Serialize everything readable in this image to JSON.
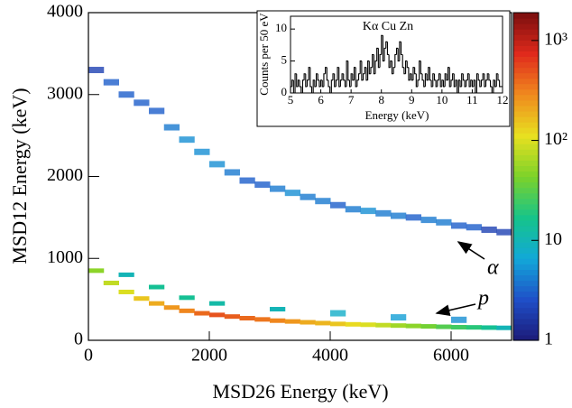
{
  "chart_data": [
    {
      "type": "hist2d",
      "x_label": "MSD26 Energy (keV)",
      "y_label": "MSD12 Energy (keV)",
      "xlim": [
        0,
        7000
      ],
      "xticks": [
        0,
        2000,
        4000,
        6000
      ],
      "ylim": [
        0,
        4000
      ],
      "yticks": [
        0,
        1000,
        2000,
        3000,
        4000
      ],
      "zlim": [
        1,
        1900
      ],
      "zscale": "log",
      "zticks": [
        1,
        10,
        {
          "value": 100,
          "label": "10²"
        },
        {
          "value": 1000,
          "label": "10³"
        }
      ],
      "colormap": [
        "#1c1a78",
        "#1f4fc8",
        "#12a8d8",
        "#16c48a",
        "#7cd22a",
        "#e8e020",
        "#f08a1e",
        "#e02a1c",
        "#7a0e0e"
      ],
      "x": [
        0,
        250,
        500,
        750,
        1000,
        1250,
        1500,
        1750,
        2000,
        2250,
        2500,
        2750,
        3000,
        3250,
        3500,
        3750,
        4000,
        4250,
        4500,
        4750,
        5000,
        5250,
        5500,
        5750,
        6000,
        6250,
        6500,
        6750,
        500,
        1000,
        1500,
        2000,
        3000,
        4000,
        5000,
        6000,
        0,
        250,
        500,
        750,
        1000,
        1250,
        1500,
        1750,
        2000,
        2250,
        2500,
        2750,
        3000,
        3250,
        3500,
        3750,
        4000,
        4250,
        4500,
        4750,
        5000,
        5250,
        5500,
        5750,
        6000,
        6250,
        6500,
        6750
      ],
      "y": [
        850,
        700,
        590,
        510,
        450,
        400,
        360,
        330,
        310,
        290,
        270,
        255,
        240,
        230,
        220,
        210,
        200,
        195,
        190,
        185,
        180,
        175,
        170,
        165,
        160,
        158,
        155,
        152,
        800,
        650,
        520,
        450,
        380,
        330,
        280,
        250,
        3300,
        3150,
        3000,
        2900,
        2800,
        2600,
        2450,
        2300,
        2150,
        2050,
        1950,
        1900,
        1850,
        1800,
        1750,
        1700,
        1650,
        1600,
        1580,
        1550,
        1520,
        1500,
        1470,
        1440,
        1400,
        1380,
        1350,
        1320
      ],
      "values": [
        50,
        80,
        100,
        150,
        200,
        250,
        300,
        400,
        500,
        450,
        400,
        350,
        300,
        250,
        200,
        180,
        150,
        120,
        100,
        80,
        60,
        50,
        40,
        30,
        25,
        20,
        15,
        10,
        10,
        15,
        15,
        12,
        10,
        8,
        6,
        5,
        2,
        3,
        3,
        3,
        3,
        4,
        5,
        5,
        5,
        4,
        3,
        3,
        4,
        5,
        4,
        4,
        3,
        4,
        5,
        4,
        4,
        3,
        4,
        4,
        3,
        3,
        2,
        2
      ],
      "annotations": [
        {
          "text": "α"
        },
        {
          "text": "p"
        }
      ]
    },
    {
      "type": "histogram",
      "title": "Kα Cu Zn",
      "x_label": "Energy (keV)",
      "y_label": "Counts per 50 eV",
      "xlim": [
        5,
        12
      ],
      "xticks": [
        5,
        6,
        7,
        8,
        9,
        10,
        11,
        12
      ],
      "ylim": [
        0,
        12
      ],
      "yticks": [
        0,
        5,
        10
      ],
      "color": "#000000",
      "bins": [
        5,
        5.05,
        5.1,
        5.15,
        5.2,
        5.25,
        5.3,
        5.35,
        5.4,
        5.45,
        5.5,
        5.55,
        5.6,
        5.65,
        5.7,
        5.75,
        5.8,
        5.85,
        5.9,
        5.95,
        6,
        6.05,
        6.1,
        6.15,
        6.2,
        6.25,
        6.3,
        6.35,
        6.4,
        6.45,
        6.5,
        6.55,
        6.6,
        6.65,
        6.7,
        6.75,
        6.8,
        6.85,
        6.9,
        6.95,
        7,
        7.05,
        7.1,
        7.15,
        7.2,
        7.25,
        7.3,
        7.35,
        7.4,
        7.45,
        7.5,
        7.55,
        7.6,
        7.65,
        7.7,
        7.75,
        7.8,
        7.85,
        7.9,
        7.95,
        8,
        8.05,
        8.1,
        8.15,
        8.2,
        8.25,
        8.3,
        8.35,
        8.4,
        8.45,
        8.5,
        8.55,
        8.6,
        8.65,
        8.7,
        8.75,
        8.8,
        8.85,
        8.9,
        8.95,
        9,
        9.05,
        9.1,
        9.15,
        9.2,
        9.25,
        9.3,
        9.35,
        9.4,
        9.45,
        9.5,
        9.55,
        9.6,
        9.65,
        9.7,
        9.75,
        9.8,
        9.85,
        9.9,
        9.95,
        10,
        10.05,
        10.1,
        10.15,
        10.2,
        10.25,
        10.3,
        10.35,
        10.4,
        10.45,
        10.5,
        10.55,
        10.6,
        10.65,
        10.7,
        10.75,
        10.8,
        10.85,
        10.9,
        10.95,
        11,
        11.05,
        11.1,
        11.15,
        11.2,
        11.25,
        11.3,
        11.35,
        11.4,
        11.45,
        11.5,
        11.55,
        11.6,
        11.65,
        11.7,
        11.75,
        11.8,
        11.85,
        11.9,
        11.95,
        12
      ],
      "values": [
        1,
        2,
        0,
        3,
        1,
        2,
        1,
        0,
        2,
        3,
        1,
        2,
        4,
        1,
        0,
        2,
        1,
        3,
        2,
        1,
        2,
        1,
        3,
        4,
        2,
        1,
        0,
        2,
        3,
        1,
        2,
        4,
        1,
        2,
        3,
        2,
        1,
        5,
        2,
        1,
        3,
        2,
        4,
        1,
        2,
        3,
        5,
        2,
        3,
        4,
        2,
        5,
        3,
        4,
        6,
        3,
        5,
        7,
        4,
        6,
        9,
        5,
        7,
        8,
        6,
        4,
        5,
        3,
        4,
        6,
        7,
        5,
        8,
        6,
        4,
        3,
        5,
        4,
        2,
        3,
        2,
        4,
        3,
        1,
        2,
        5,
        3,
        2,
        1,
        3,
        2,
        4,
        2,
        1,
        3,
        2,
        1,
        2,
        3,
        1,
        2,
        1,
        3,
        2,
        4,
        1,
        2,
        3,
        1,
        2,
        0,
        2,
        1,
        3,
        2,
        1,
        2,
        3,
        1,
        2,
        1,
        2,
        0,
        3,
        2,
        1,
        2,
        3,
        1,
        2,
        3,
        2,
        1,
        0,
        2,
        1,
        3,
        2,
        1,
        1
      ]
    }
  ]
}
